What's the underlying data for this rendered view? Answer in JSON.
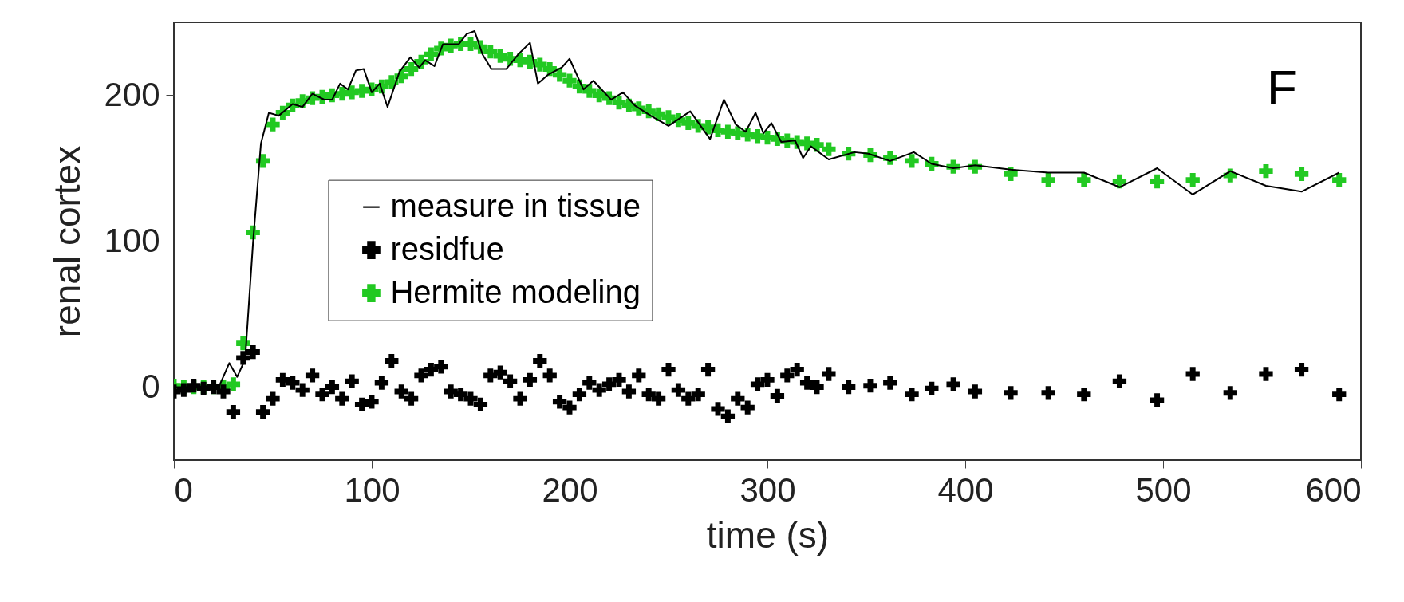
{
  "chart_data": {
    "type": "line",
    "xlabel": "time (s)",
    "ylabel": "renal cortex",
    "xlim": [
      0,
      600
    ],
    "xticks": [
      0,
      100,
      200,
      300,
      400,
      500,
      600
    ],
    "ylim": [
      -50,
      250
    ],
    "yticks": [
      0,
      100,
      200
    ],
    "grid": false,
    "legend": "left",
    "annotations": [
      "F"
    ],
    "series": [
      {
        "name": "measure in tissue",
        "type": "line",
        "color": "#000000",
        "marker": "none",
        "line_style": "solid",
        "x": [
          0,
          10,
          20,
          23,
          28,
          32,
          36,
          40,
          44,
          48,
          53,
          60,
          65,
          70,
          76,
          80,
          84,
          88,
          92,
          96,
          100,
          104,
          108,
          114,
          119.5,
          124,
          127,
          131.7,
          136,
          144,
          148,
          152,
          156,
          160.5,
          168,
          174,
          180,
          184,
          189,
          196,
          200,
          207,
          212,
          221,
          227,
          233,
          241,
          250,
          261,
          271,
          278,
          284,
          289,
          294,
          298,
          302,
          307,
          314,
          318,
          322,
          331,
          344,
          351,
          362,
          374,
          383,
          394,
          405,
          423,
          442,
          460,
          478,
          497,
          515,
          534,
          552,
          570,
          589
        ],
        "values": [
          0,
          0,
          1,
          1,
          16.5,
          7,
          19,
          99,
          167,
          188,
          186,
          194,
          192,
          201,
          197,
          197,
          208,
          204,
          217,
          218,
          202,
          208,
          192,
          216,
          226,
          219,
          224,
          220,
          235,
          235,
          242,
          244,
          228,
          218,
          218,
          228,
          236,
          208,
          214,
          219,
          225,
          204,
          210,
          197,
          202,
          193,
          186,
          179,
          189,
          170,
          197,
          180,
          175,
          188,
          174,
          181,
          168,
          169,
          157,
          165,
          156,
          161,
          160,
          155,
          161,
          153,
          150,
          152,
          149,
          147,
          147,
          137,
          150,
          132,
          148,
          138,
          134,
          147
        ]
      },
      {
        "name": "residfue",
        "type": "scatter",
        "color": "#000000",
        "marker": "cross",
        "x": [
          0,
          5,
          10,
          15,
          20,
          25,
          30,
          35,
          40,
          45,
          50,
          55,
          60,
          65,
          70,
          75,
          80,
          85,
          90,
          95,
          100,
          105,
          110,
          115,
          120,
          125,
          130,
          135,
          140,
          145,
          150,
          155,
          160,
          165,
          170,
          175,
          180,
          185,
          190,
          195,
          200,
          205,
          210,
          215,
          220,
          225,
          230,
          235,
          240,
          245,
          250,
          255,
          260,
          265,
          270,
          275,
          280,
          285,
          290,
          295,
          300,
          305,
          310,
          315,
          320,
          325,
          331,
          341,
          352,
          362,
          373,
          383,
          394,
          405,
          423,
          442,
          460,
          478,
          497,
          515,
          534,
          552,
          570,
          589
        ],
        "values": [
          -3,
          -2,
          1,
          -1,
          0,
          -3,
          -17,
          20,
          24,
          -17,
          -8,
          5,
          3,
          -2,
          8,
          -5,
          0,
          -8,
          4,
          -12,
          -10,
          3,
          18,
          -3,
          -8,
          8,
          12,
          14,
          -3,
          -5,
          -8,
          -12,
          8,
          10,
          4,
          -8,
          5,
          18,
          8,
          -10,
          -14,
          -5,
          3,
          -2,
          2,
          5,
          -3,
          8,
          -5,
          -8,
          12,
          -2,
          -8,
          -5,
          12,
          -15,
          -20,
          -8,
          -14,
          2,
          5,
          -6,
          8,
          12,
          3,
          0,
          9,
          0,
          1,
          3,
          -5,
          -1,
          2,
          -3,
          -4,
          -4,
          -5,
          4,
          -9,
          9,
          -4,
          9,
          12,
          -5
        ]
      },
      {
        "name": "Hermite modeling",
        "type": "scatter",
        "color": "#22c922",
        "marker": "cross",
        "x": [
          0,
          5,
          10,
          15,
          20,
          25,
          30,
          35,
          40,
          45,
          50,
          55,
          60,
          65,
          70,
          75,
          80,
          85,
          90,
          95,
          100,
          105,
          110,
          115,
          120,
          125,
          130,
          135,
          140,
          145,
          150,
          155,
          160,
          165,
          170,
          175,
          180,
          185,
          190,
          195,
          200,
          205,
          210,
          215,
          220,
          225,
          230,
          235,
          240,
          245,
          250,
          255,
          260,
          265,
          270,
          275,
          280,
          285,
          290,
          295,
          300,
          305,
          310,
          315,
          320,
          325,
          331,
          341,
          352,
          362,
          373,
          383,
          394,
          405,
          423,
          442,
          460,
          478,
          497,
          515,
          534,
          552,
          570,
          589
        ],
        "values": [
          1,
          0,
          0,
          0,
          0,
          0,
          2,
          30,
          106,
          155,
          180,
          188,
          193,
          196,
          198,
          199,
          200,
          201,
          202,
          203,
          204,
          206,
          209,
          213,
          218,
          223,
          228,
          232,
          234,
          235,
          235,
          233,
          230,
          227,
          225,
          224,
          223,
          221,
          218,
          214,
          210,
          206,
          203,
          200,
          198,
          195,
          193,
          191,
          189,
          187,
          185,
          183,
          181,
          179,
          178,
          176,
          175,
          174,
          173,
          172,
          171,
          170,
          169,
          168,
          167,
          166,
          163,
          160,
          159,
          157,
          155,
          153,
          151,
          151,
          146,
          142,
          142,
          141,
          141,
          142,
          145,
          148,
          146,
          142
        ]
      }
    ]
  }
}
